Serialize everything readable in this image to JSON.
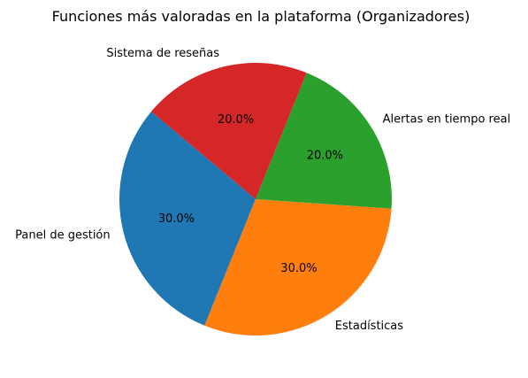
{
  "chart_data": {
    "type": "pie",
    "title": "Funciones más valoradas en la plataforma (Organizadores)",
    "categories": [
      "Panel de gestión",
      "Estadísticas",
      "Alertas en tiempo real",
      "Sistema de reseñas"
    ],
    "values": [
      30.0,
      30.0,
      20.0,
      20.0
    ],
    "percent_labels": [
      "30.0%",
      "30.0%",
      "20.0%",
      "20.0%"
    ],
    "colors": [
      "#1f77b4",
      "#ff7f0e",
      "#2ca02c",
      "#d62728"
    ],
    "start_angle_deg": 140,
    "direction": "counterclockwise",
    "legend": "none"
  }
}
